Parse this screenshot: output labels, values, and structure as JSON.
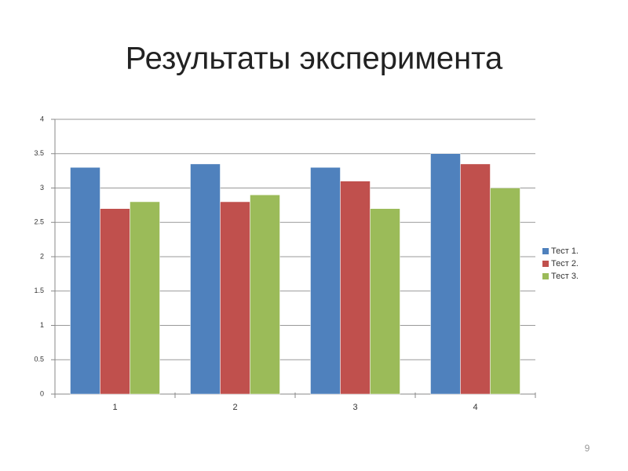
{
  "chart_data": {
    "type": "bar",
    "title": "Результаты эксперимента",
    "categories": [
      "1",
      "2",
      "3",
      "4"
    ],
    "series": [
      {
        "name": "Тест 1.",
        "color": "#4f81bd",
        "values": [
          3.3,
          3.35,
          3.3,
          3.5
        ]
      },
      {
        "name": "Тест 2.",
        "color": "#c0504d",
        "values": [
          2.7,
          2.8,
          3.1,
          3.35
        ]
      },
      {
        "name": "Тест 3.",
        "color": "#9bbb59",
        "values": [
          2.8,
          2.9,
          2.7,
          3.0
        ]
      }
    ],
    "ylim": [
      0,
      4
    ],
    "yticks": [
      0,
      0.5,
      1,
      1.5,
      2,
      2.5,
      3,
      3.5,
      4
    ],
    "grid": true,
    "legend": "right"
  },
  "slide_number": "9"
}
